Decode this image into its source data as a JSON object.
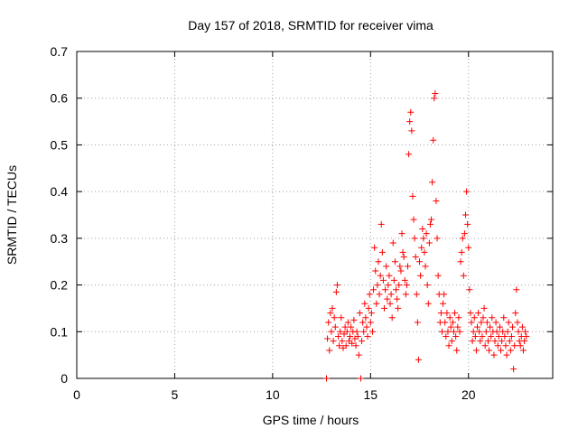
{
  "chart_data": {
    "type": "scatter",
    "title": "Day 157 of 2018, SRMTID for receiver vima",
    "xlabel": "GPS time / hours",
    "ylabel": "SRMTID / TECUs",
    "xlim": [
      0,
      24.3
    ],
    "ylim": [
      0,
      0.7
    ],
    "xticks": [
      0,
      5,
      10,
      15,
      20
    ],
    "xtick_labels": [
      "0",
      "5",
      "10",
      "15",
      "20"
    ],
    "yticks": [
      0,
      0.1,
      0.2,
      0.3,
      0.4,
      0.5,
      0.6,
      0.7
    ],
    "ytick_labels": [
      "0",
      "0.1",
      "0.2",
      "0.3",
      "0.4",
      "0.5",
      "0.6",
      "0.7"
    ],
    "grid": true,
    "marker": "plus",
    "color": "#ff0000",
    "series": [
      {
        "name": "SRMTID",
        "points": [
          [
            12.75,
            0.0
          ],
          [
            12.8,
            0.085
          ],
          [
            12.85,
            0.12
          ],
          [
            12.9,
            0.06
          ],
          [
            12.95,
            0.14
          ],
          [
            13.0,
            0.1
          ],
          [
            13.05,
            0.15
          ],
          [
            13.1,
            0.08
          ],
          [
            13.15,
            0.13
          ],
          [
            13.2,
            0.11
          ],
          [
            13.25,
            0.185
          ],
          [
            13.3,
            0.2
          ],
          [
            13.35,
            0.09
          ],
          [
            13.4,
            0.07
          ],
          [
            13.45,
            0.1
          ],
          [
            13.5,
            0.13
          ],
          [
            13.55,
            0.08
          ],
          [
            13.6,
            0.065
          ],
          [
            13.65,
            0.095
          ],
          [
            13.7,
            0.11
          ],
          [
            13.75,
            0.07
          ],
          [
            13.8,
            0.1
          ],
          [
            13.85,
            0.12
          ],
          [
            13.9,
            0.08
          ],
          [
            13.95,
            0.09
          ],
          [
            14.0,
            0.11
          ],
          [
            14.05,
            0.075
          ],
          [
            14.1,
            0.1
          ],
          [
            14.15,
            0.125
          ],
          [
            14.2,
            0.085
          ],
          [
            14.25,
            0.07
          ],
          [
            14.3,
            0.1
          ],
          [
            14.35,
            0.09
          ],
          [
            14.4,
            0.05
          ],
          [
            14.45,
            0.14
          ],
          [
            14.5,
            0.0
          ],
          [
            14.55,
            0.08
          ],
          [
            14.6,
            0.12
          ],
          [
            14.65,
            0.1
          ],
          [
            14.7,
            0.16
          ],
          [
            14.75,
            0.13
          ],
          [
            14.8,
            0.11
          ],
          [
            14.85,
            0.09
          ],
          [
            14.9,
            0.15
          ],
          [
            14.95,
            0.18
          ],
          [
            15.0,
            0.12
          ],
          [
            15.05,
            0.14
          ],
          [
            15.1,
            0.1
          ],
          [
            15.15,
            0.19
          ],
          [
            15.2,
            0.28
          ],
          [
            15.25,
            0.23
          ],
          [
            15.3,
            0.16
          ],
          [
            15.35,
            0.2
          ],
          [
            15.4,
            0.25
          ],
          [
            15.45,
            0.18
          ],
          [
            15.5,
            0.22
          ],
          [
            15.55,
            0.33
          ],
          [
            15.6,
            0.27
          ],
          [
            15.65,
            0.21
          ],
          [
            15.7,
            0.15
          ],
          [
            15.75,
            0.19
          ],
          [
            15.8,
            0.24
          ],
          [
            15.85,
            0.17
          ],
          [
            15.9,
            0.2
          ],
          [
            15.95,
            0.22
          ],
          [
            16.0,
            0.16
          ],
          [
            16.05,
            0.18
          ],
          [
            16.1,
            0.13
          ],
          [
            16.15,
            0.29
          ],
          [
            16.2,
            0.21
          ],
          [
            16.25,
            0.25
          ],
          [
            16.3,
            0.19
          ],
          [
            16.35,
            0.17
          ],
          [
            16.4,
            0.15
          ],
          [
            16.45,
            0.2
          ],
          [
            16.5,
            0.24
          ],
          [
            16.55,
            0.23
          ],
          [
            16.6,
            0.31
          ],
          [
            16.65,
            0.27
          ],
          [
            16.7,
            0.26
          ],
          [
            16.75,
            0.21
          ],
          [
            16.8,
            0.18
          ],
          [
            16.85,
            0.2
          ],
          [
            16.9,
            0.24
          ],
          [
            16.95,
            0.48
          ],
          [
            17.0,
            0.55
          ],
          [
            17.05,
            0.57
          ],
          [
            17.1,
            0.53
          ],
          [
            17.15,
            0.39
          ],
          [
            17.2,
            0.34
          ],
          [
            17.25,
            0.3
          ],
          [
            17.3,
            0.26
          ],
          [
            17.35,
            0.18
          ],
          [
            17.4,
            0.12
          ],
          [
            17.45,
            0.04
          ],
          [
            17.5,
            0.25
          ],
          [
            17.55,
            0.22
          ],
          [
            17.6,
            0.28
          ],
          [
            17.65,
            0.32
          ],
          [
            17.7,
            0.3
          ],
          [
            17.75,
            0.27
          ],
          [
            17.8,
            0.24
          ],
          [
            17.85,
            0.31
          ],
          [
            17.9,
            0.2
          ],
          [
            17.95,
            0.16
          ],
          [
            18.0,
            0.29
          ],
          [
            18.05,
            0.33
          ],
          [
            18.1,
            0.34
          ],
          [
            18.15,
            0.42
          ],
          [
            18.2,
            0.51
          ],
          [
            18.25,
            0.6
          ],
          [
            18.3,
            0.61
          ],
          [
            18.35,
            0.38
          ],
          [
            18.4,
            0.3
          ],
          [
            18.45,
            0.22
          ],
          [
            18.5,
            0.18
          ],
          [
            18.55,
            0.12
          ],
          [
            18.6,
            0.14
          ],
          [
            18.65,
            0.1
          ],
          [
            18.7,
            0.16
          ],
          [
            18.75,
            0.18
          ],
          [
            18.8,
            0.12
          ],
          [
            18.85,
            0.09
          ],
          [
            18.9,
            0.14
          ],
          [
            18.95,
            0.1
          ],
          [
            19.0,
            0.07
          ],
          [
            19.05,
            0.13
          ],
          [
            19.1,
            0.11
          ],
          [
            19.15,
            0.08
          ],
          [
            19.2,
            0.12
          ],
          [
            19.25,
            0.1
          ],
          [
            19.3,
            0.14
          ],
          [
            19.35,
            0.09
          ],
          [
            19.4,
            0.06
          ],
          [
            19.45,
            0.11
          ],
          [
            19.5,
            0.13
          ],
          [
            19.55,
            0.1
          ],
          [
            19.6,
            0.25
          ],
          [
            19.65,
            0.27
          ],
          [
            19.7,
            0.3
          ],
          [
            19.75,
            0.22
          ],
          [
            19.8,
            0.31
          ],
          [
            19.85,
            0.35
          ],
          [
            19.9,
            0.4
          ],
          [
            19.95,
            0.33
          ],
          [
            20.0,
            0.28
          ],
          [
            20.05,
            0.19
          ],
          [
            20.1,
            0.14
          ],
          [
            20.15,
            0.12
          ],
          [
            20.2,
            0.08
          ],
          [
            20.25,
            0.1
          ],
          [
            20.3,
            0.13
          ],
          [
            20.35,
            0.09
          ],
          [
            20.4,
            0.06
          ],
          [
            20.45,
            0.11
          ],
          [
            20.5,
            0.14
          ],
          [
            20.55,
            0.1
          ],
          [
            20.6,
            0.08
          ],
          [
            20.65,
            0.12
          ],
          [
            20.7,
            0.09
          ],
          [
            20.75,
            0.13
          ],
          [
            20.8,
            0.15
          ],
          [
            20.85,
            0.07
          ],
          [
            20.9,
            0.1
          ],
          [
            20.95,
            0.12
          ],
          [
            21.0,
            0.08
          ],
          [
            21.05,
            0.06
          ],
          [
            21.1,
            0.11
          ],
          [
            21.15,
            0.09
          ],
          [
            21.2,
            0.13
          ],
          [
            21.25,
            0.1
          ],
          [
            21.3,
            0.05
          ],
          [
            21.35,
            0.08
          ],
          [
            21.4,
            0.12
          ],
          [
            21.45,
            0.1
          ],
          [
            21.5,
            0.07
          ],
          [
            21.55,
            0.09
          ],
          [
            21.6,
            0.11
          ],
          [
            21.65,
            0.06
          ],
          [
            21.7,
            0.08
          ],
          [
            21.75,
            0.1
          ],
          [
            21.8,
            0.13
          ],
          [
            21.85,
            0.09
          ],
          [
            21.9,
            0.07
          ],
          [
            21.95,
            0.05
          ],
          [
            22.0,
            0.1
          ],
          [
            22.05,
            0.12
          ],
          [
            22.1,
            0.08
          ],
          [
            22.15,
            0.06
          ],
          [
            22.2,
            0.09
          ],
          [
            22.25,
            0.11
          ],
          [
            22.3,
            0.02
          ],
          [
            22.35,
            0.07
          ],
          [
            22.4,
            0.14
          ],
          [
            22.45,
            0.19
          ],
          [
            22.5,
            0.12
          ],
          [
            22.55,
            0.1
          ],
          [
            22.6,
            0.08
          ],
          [
            22.65,
            0.07
          ],
          [
            22.7,
            0.09
          ],
          [
            22.75,
            0.11
          ],
          [
            22.8,
            0.06
          ],
          [
            22.85,
            0.08
          ],
          [
            22.9,
            0.1
          ],
          [
            22.95,
            0.09
          ]
        ]
      }
    ]
  }
}
